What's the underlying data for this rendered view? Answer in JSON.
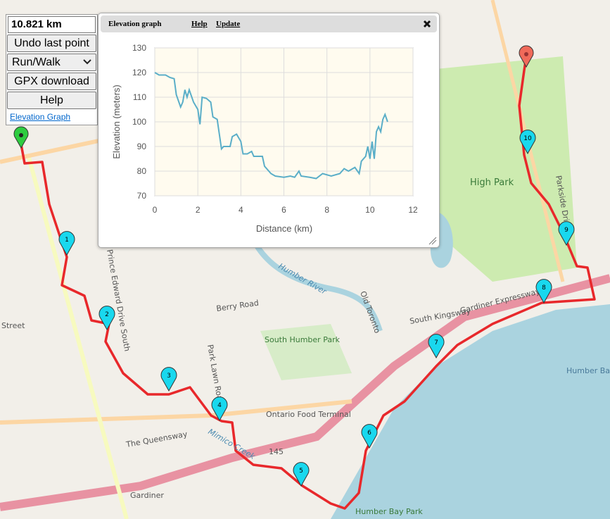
{
  "controls": {
    "distance": "10.821 km",
    "undo": "Undo last point",
    "mode": "Run/Walk",
    "gpx": "GPX download",
    "help": "Help",
    "elevation_link": "Elevation Graph"
  },
  "panel": {
    "title": "Elevation graph",
    "help": "Help",
    "update": "Update"
  },
  "chart_data": {
    "type": "line",
    "x_label": "Distance (km)",
    "y_label": "Elevation (meters)",
    "color": "#5aaec8",
    "x": [
      0,
      0.2,
      0.5,
      0.7,
      0.9,
      1.0,
      1.2,
      1.3,
      1.4,
      1.5,
      1.6,
      1.8,
      2.0,
      2.1,
      2.2,
      2.4,
      2.6,
      2.7,
      2.9,
      3.0,
      3.1,
      3.2,
      3.5,
      3.6,
      3.8,
      4.0,
      4.1,
      4.3,
      4.5,
      4.6,
      5.0,
      5.1,
      5.4,
      5.6,
      6.0,
      6.3,
      6.5,
      6.7,
      6.8,
      7.2,
      7.5,
      7.8,
      8.2,
      8.6,
      8.8,
      9.0,
      9.3,
      9.5,
      9.6,
      9.8,
      9.9,
      10.0,
      10.1,
      10.2,
      10.3,
      10.4,
      10.5,
      10.6,
      10.7,
      10.82
    ],
    "values": [
      120,
      119,
      119,
      118,
      117.5,
      111,
      106,
      108,
      113,
      110,
      113,
      108,
      105,
      99,
      110,
      109.5,
      108,
      102,
      101,
      95,
      89,
      90,
      90,
      94,
      95,
      92,
      87,
      87,
      88,
      86,
      86,
      82,
      79,
      78,
      77.5,
      78,
      77.5,
      80,
      78,
      77.5,
      77,
      79,
      78,
      79,
      81,
      80,
      81.5,
      79,
      84,
      86,
      90,
      85,
      92,
      85,
      96,
      98,
      96,
      101,
      103,
      100
    ],
    "xlim": [
      0,
      12
    ],
    "ylim": [
      70,
      130
    ],
    "xticks": [
      0,
      2,
      4,
      6,
      8,
      10,
      12
    ],
    "yticks": [
      70,
      80,
      90,
      100,
      110,
      120,
      130
    ],
    "grid": true
  },
  "map": {
    "labels": [
      "High Park",
      "South Humber Park",
      "Humber River",
      "Gardiner Expressway",
      "South Kingsway",
      "Ontario Food Terminal",
      "The Queensway",
      "Berry Road",
      "Humber Bay",
      "Humber Bay Park",
      "Park Lawn Road",
      "Prince Edward Drive South",
      "Parkside Drive",
      "Old Toronto",
      "Street",
      "Mimico Creek",
      "Gardiner",
      "145"
    ],
    "markers": [
      "1",
      "2",
      "3",
      "4",
      "5",
      "6",
      "7",
      "8",
      "9",
      "10"
    ]
  }
}
